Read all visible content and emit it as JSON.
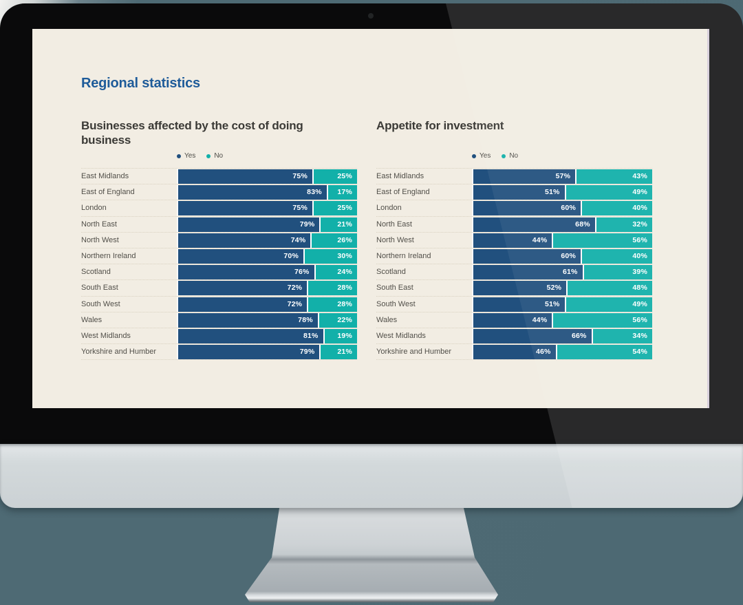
{
  "page": {
    "title": "Regional statistics"
  },
  "colors": {
    "yes": "#21507e",
    "no": "#12b0a9",
    "title_blue": "#1e5b99",
    "screen_background": "#f2ede3",
    "backdrop": "#4d6973"
  },
  "chart_data": [
    {
      "type": "bar",
      "orientation": "horizontal",
      "stacked": true,
      "title": "Businesses affected by the cost of doing business",
      "legend_position": "top",
      "xlim": [
        0,
        100
      ],
      "value_suffix": "%",
      "categories": [
        "East Midlands",
        "East of England",
        "London",
        "North East",
        "North West",
        "Northern Ireland",
        "Scotland",
        "South East",
        "South West",
        "Wales",
        "West Midlands",
        "Yorkshire and Humber"
      ],
      "series": [
        {
          "name": "Yes",
          "color": "#21507e",
          "values": [
            75,
            83,
            75,
            79,
            74,
            70,
            76,
            72,
            72,
            78,
            81,
            79
          ]
        },
        {
          "name": "No",
          "color": "#12b0a9",
          "values": [
            25,
            17,
            25,
            21,
            26,
            30,
            24,
            28,
            28,
            22,
            19,
            21
          ]
        }
      ]
    },
    {
      "type": "bar",
      "orientation": "horizontal",
      "stacked": true,
      "title": "Appetite for investment",
      "legend_position": "top",
      "xlim": [
        0,
        100
      ],
      "value_suffix": "%",
      "categories": [
        "East Midlands",
        "East of England",
        "London",
        "North East",
        "North West",
        "Northern Ireland",
        "Scotland",
        "South East",
        "South West",
        "Wales",
        "West Midlands",
        "Yorkshire and Humber"
      ],
      "series": [
        {
          "name": "Yes",
          "color": "#21507e",
          "values": [
            57,
            51,
            60,
            68,
            44,
            60,
            61,
            52,
            51,
            44,
            66,
            46
          ]
        },
        {
          "name": "No",
          "color": "#12b0a9",
          "values": [
            43,
            49,
            40,
            32,
            56,
            40,
            39,
            48,
            49,
            56,
            34,
            54
          ]
        }
      ]
    }
  ]
}
